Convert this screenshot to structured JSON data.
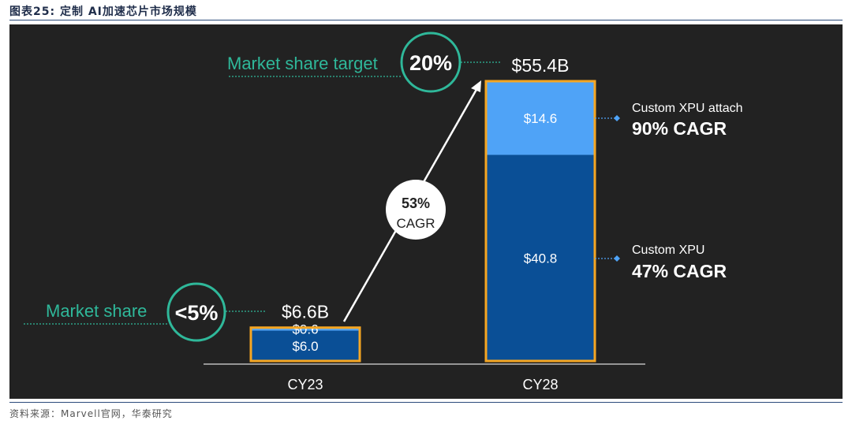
{
  "figure_title": "图表25:  定制 AI加速芯片市场规模",
  "source": "资料来源：Marvell官网，华泰研究",
  "chart_data": {
    "type": "bar",
    "categories": [
      "CY23",
      "CY28"
    ],
    "series": [
      {
        "name": "Custom XPU",
        "values": [
          6.0,
          40.8
        ],
        "value_labels": [
          "$6.0",
          "$40.8"
        ],
        "color": "#0a4f96"
      },
      {
        "name": "Custom XPU attach",
        "values": [
          0.6,
          14.6
        ],
        "value_labels": [
          "$0.6",
          "$14.6"
        ],
        "color": "#4fa3f7"
      }
    ],
    "totals": [
      "$6.6B",
      "$55.4B"
    ],
    "ylim": [
      0,
      55.4
    ],
    "bar_outline_color": "#f5a623",
    "growth_arrow": {
      "pct": "53%",
      "label": "CAGR"
    },
    "annotations": {
      "market_share_label": "Market share",
      "market_share_value": "<5%",
      "target_label": "Market share target",
      "target_value": "20%",
      "attach_name": "Custom XPU attach",
      "attach_cagr": "90% CAGR",
      "xpu_name": "Custom XPU",
      "xpu_cagr": "47% CAGR"
    },
    "accent_color": "#2fb89a"
  }
}
